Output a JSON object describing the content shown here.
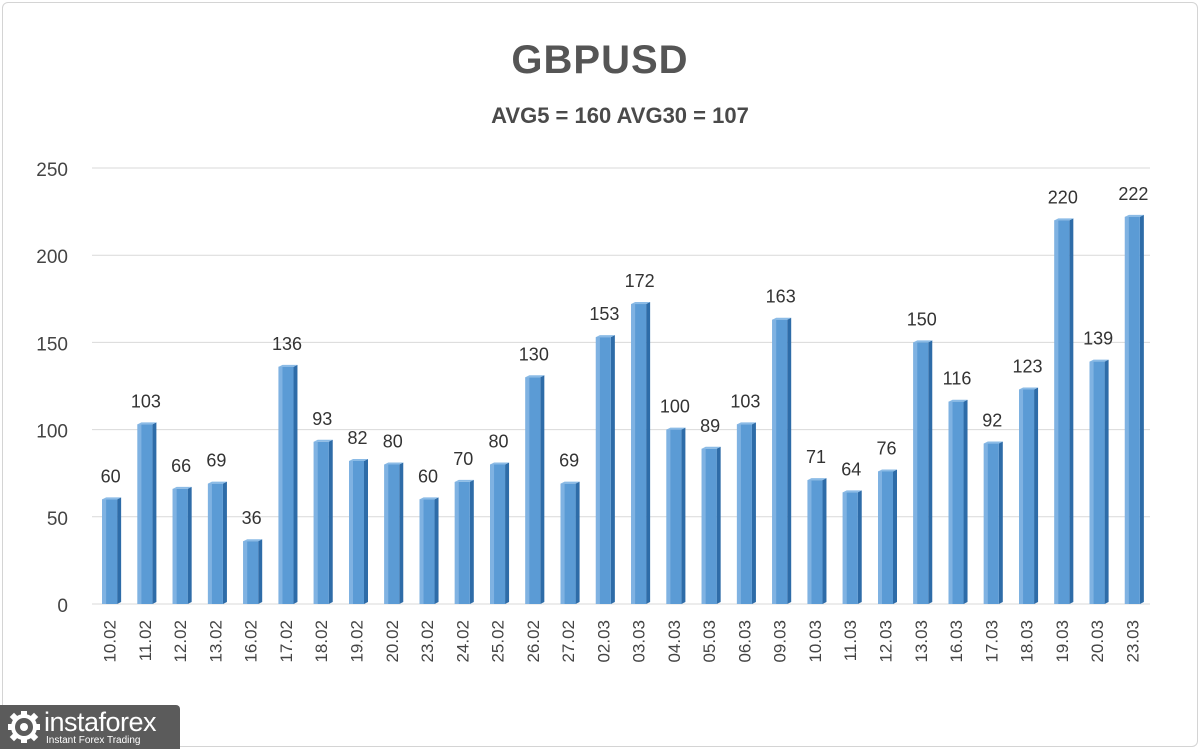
{
  "chart_data": {
    "type": "bar",
    "title": "GBPUSD",
    "subtitle": "AVG5 = 160 AVG30 = 107",
    "categories": [
      "10.02",
      "11.02",
      "12.02",
      "13.02",
      "16.02",
      "17.02",
      "18.02",
      "19.02",
      "20.02",
      "23.02",
      "24.02",
      "25.02",
      "26.02",
      "27.02",
      "02.03",
      "03.03",
      "04.03",
      "05.03",
      "06.03",
      "09.03",
      "10.03",
      "11.03",
      "12.03",
      "13.03",
      "16.03",
      "17.03",
      "18.03",
      "19.03",
      "20.03",
      "23.03"
    ],
    "values": [
      60,
      103,
      66,
      69,
      36,
      136,
      93,
      82,
      80,
      60,
      70,
      80,
      130,
      69,
      153,
      172,
      100,
      89,
      103,
      163,
      71,
      64,
      76,
      150,
      116,
      92,
      123,
      220,
      139,
      222
    ],
    "ylim": [
      0,
      250
    ],
    "yticks": [
      0,
      50,
      100,
      150,
      200,
      250
    ],
    "grid": true,
    "data_labels": true,
    "bar_color": "#5b9bd5",
    "bar_dark_color": "#2e6ca8"
  },
  "logo": {
    "name": "instaforex",
    "tagline": "Instant Forex Trading"
  }
}
